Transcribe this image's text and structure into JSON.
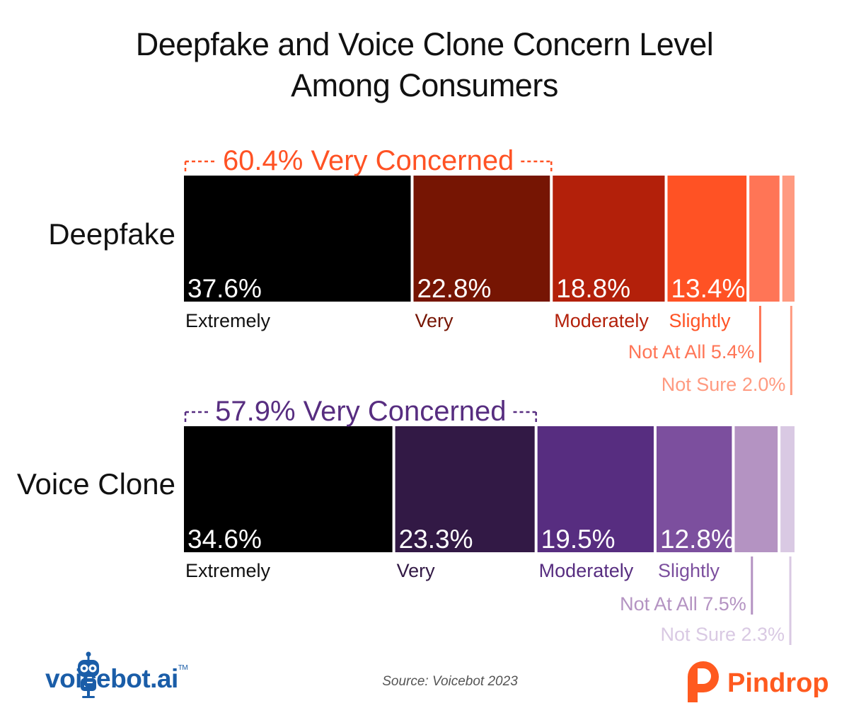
{
  "title": {
    "line1": "Deepfake and Voice Clone Concern Level",
    "line2": "Among Consumers"
  },
  "source": "Source: Voicebot 2023",
  "logos": {
    "voicebot": "voicebot.ai",
    "voicebot_tm": "TM",
    "pindrop": "Pindrop"
  },
  "chart_data": {
    "type": "bar",
    "orientation": "horizontal-stacked-100",
    "categories": [
      "Extremely",
      "Very",
      "Moderately",
      "Slightly",
      "Not At All",
      "Not Sure"
    ],
    "series": [
      {
        "name": "Deepfake",
        "values": [
          37.6,
          22.8,
          18.8,
          13.4,
          5.4,
          2.0
        ],
        "value_labels": [
          "37.6%",
          "22.8%",
          "18.8%",
          "13.4%",
          "",
          ""
        ],
        "category_labels": [
          "Extremely",
          "Very",
          "Moderately",
          "Slightly",
          "Not At All 5.4%",
          "Not Sure 2.0%"
        ],
        "colors": [
          "#000000",
          "#761503",
          "#b3200a",
          "#ff5224",
          "#ff7556",
          "#ff9a80"
        ],
        "label_colors": [
          "#111111",
          "#761503",
          "#b3200a",
          "#ff5224",
          "#ff7556",
          "#ff9a80"
        ],
        "bracket_label": "60.4% Very Concerned",
        "bracket_color": "#ff5224",
        "bracket_span": 2
      },
      {
        "name": "Voice Clone",
        "values": [
          34.6,
          23.3,
          19.5,
          12.8,
          7.5,
          2.3
        ],
        "value_labels": [
          "34.6%",
          "23.3%",
          "19.5%",
          "12.8%",
          "",
          ""
        ],
        "category_labels": [
          "Extremely",
          "Very",
          "Moderately",
          "Slightly",
          "Not At All 7.5%",
          "Not Sure 2.3%"
        ],
        "colors": [
          "#000000",
          "#321945",
          "#572d80",
          "#7c4f9e",
          "#b493c2",
          "#d9c9e3"
        ],
        "label_colors": [
          "#111111",
          "#321945",
          "#572d80",
          "#7c4f9e",
          "#b493c2",
          "#d9c9e3"
        ],
        "bracket_label": "57.9% Very Concerned",
        "bracket_color": "#572d80",
        "bracket_span": 2
      }
    ]
  }
}
